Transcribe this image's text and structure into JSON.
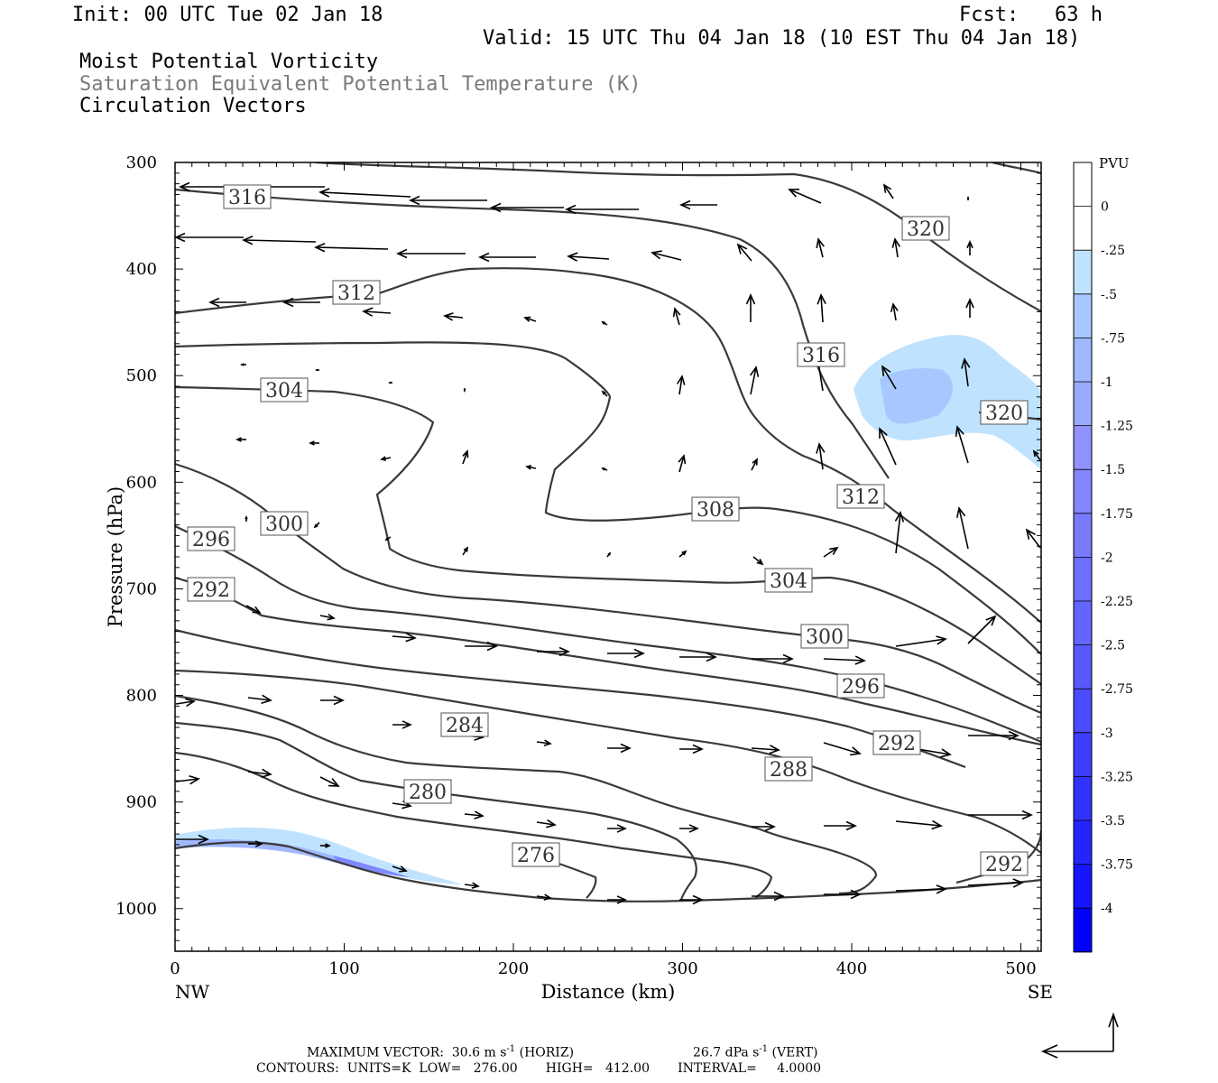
{
  "header": {
    "init": "Init: 00 UTC Tue 02 Jan 18",
    "fcst": "Fcst:   63 h",
    "valid": "Valid: 15 UTC Thu 04 Jan 18 (10 EST Thu 04 Jan 18)",
    "line1": "Moist Potential Vorticity",
    "line2": "Saturation Equivalent Potential Temperature (K)",
    "line3": "Circulation Vectors"
  },
  "footer": {
    "max_vector": "MAXIMUM VECTOR:  30.6 m s",
    "horiz": " (HORIZ)",
    "vert_value": "26.7 dPa s",
    "vert": " (VERT)",
    "exp": "-1",
    "contours": "CONTOURS:  UNITS=K  LOW=   276.00       HIGH=   412.00       INTERVAL=     4.0000"
  },
  "colors": {
    "contour": "#3a3a3a",
    "pv_light": "#bfe3ff",
    "pv_dark": "#5555ff",
    "pv_max": "#0000ff"
  },
  "chart_data": {
    "type": "contour",
    "xlabel": "Distance (km)",
    "ylabel": "Pressure (hPa)",
    "xlim": [
      0,
      512
    ],
    "ylim": [
      1040,
      300
    ],
    "x_ticks": [
      "0",
      "100",
      "200",
      "300",
      "400",
      "500"
    ],
    "y_ticks": [
      "300",
      "400",
      "500",
      "600",
      "700",
      "800",
      "900",
      "1000"
    ],
    "x_endpoints": {
      "left": "NW",
      "right": "SE"
    },
    "contour_levels_K": [
      276,
      280,
      284,
      288,
      292,
      296,
      300,
      304,
      308,
      312,
      316,
      320
    ],
    "contour_labels": [
      "316",
      "320",
      "312",
      "316",
      "304",
      "320",
      "312",
      "308",
      "300",
      "296",
      "304",
      "300",
      "292",
      "296",
      "284",
      "292",
      "288",
      "280",
      "276",
      "292"
    ],
    "colorbar": {
      "units": "PVU",
      "labels": [
        "0",
        "-.25",
        "-.5",
        "-.75",
        "-1",
        "-1.25",
        "-1.5",
        "-1.75",
        "-2",
        "-2.25",
        "-2.5",
        "-2.75",
        "-3",
        "-3.25",
        "-3.5",
        "-3.75",
        "-4"
      ]
    }
  }
}
